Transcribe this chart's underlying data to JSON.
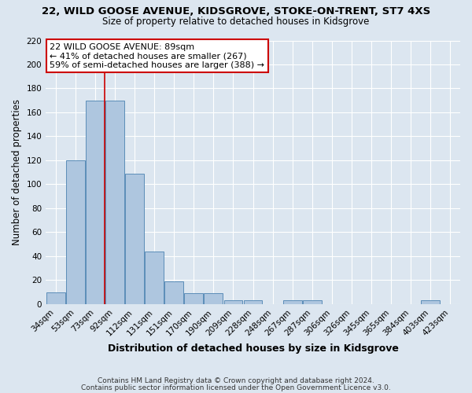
{
  "title_line1": "22, WILD GOOSE AVENUE, KIDSGROVE, STOKE-ON-TRENT, ST7 4XS",
  "title_line2": "Size of property relative to detached houses in Kidsgrove",
  "xlabel": "Distribution of detached houses by size in Kidsgrove",
  "ylabel": "Number of detached properties",
  "bin_labels": [
    "34sqm",
    "53sqm",
    "73sqm",
    "92sqm",
    "112sqm",
    "131sqm",
    "151sqm",
    "170sqm",
    "190sqm",
    "209sqm",
    "228sqm",
    "248sqm",
    "267sqm",
    "287sqm",
    "306sqm",
    "326sqm",
    "345sqm",
    "365sqm",
    "384sqm",
    "403sqm",
    "423sqm"
  ],
  "bar_values": [
    10,
    120,
    170,
    170,
    109,
    44,
    19,
    9,
    9,
    3,
    3,
    0,
    3,
    3,
    0,
    0,
    0,
    0,
    0,
    3,
    0
  ],
  "bar_color": "#aec6df",
  "bar_edge_color": "#5b8db8",
  "red_line_color": "#cc0000",
  "red_line_bin": 3,
  "ylim": [
    0,
    220
  ],
  "yticks": [
    0,
    20,
    40,
    60,
    80,
    100,
    120,
    140,
    160,
    180,
    200,
    220
  ],
  "annotation_title": "22 WILD GOOSE AVENUE: 89sqm",
  "annotation_line1": "← 41% of detached houses are smaller (267)",
  "annotation_line2": "59% of semi-detached houses are larger (388) →",
  "annotation_box_color": "#ffffff",
  "annotation_box_edge": "#cc0000",
  "footer_line1": "Contains HM Land Registry data © Crown copyright and database right 2024.",
  "footer_line2": "Contains public sector information licensed under the Open Government Licence v3.0.",
  "background_color": "#dce6f0",
  "grid_color": "#ffffff",
  "title_fontsize": 9.5,
  "subtitle_fontsize": 8.5,
  "ylabel_fontsize": 8.5,
  "xlabel_fontsize": 9,
  "tick_fontsize": 7.5,
  "ann_fontsize": 8,
  "footer_fontsize": 6.5
}
